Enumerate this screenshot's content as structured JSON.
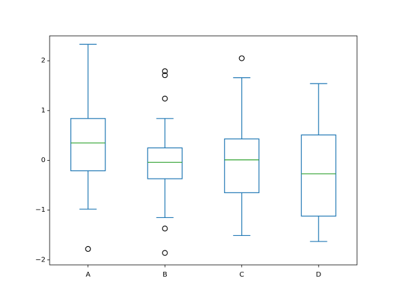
{
  "chart_data": {
    "type": "boxplot",
    "title": "",
    "xlabel": "",
    "ylabel": "",
    "ylim": [
      -2.1,
      2.5
    ],
    "yticks": [
      -2,
      -1,
      0,
      1,
      2
    ],
    "ytick_labels": [
      "−2",
      "−1",
      "0",
      "1",
      "2"
    ],
    "grid": false,
    "legend": "none",
    "colors": {
      "box": "#1f77b4",
      "median": "#2ca02c",
      "flier": "#000000",
      "axes": "#000000"
    },
    "categories": [
      "A",
      "B",
      "C",
      "D"
    ],
    "boxes": [
      {
        "label": "A",
        "whisker_low": -0.98,
        "q1": -0.21,
        "median": 0.35,
        "q3": 0.84,
        "whisker_high": 2.33,
        "fliers": [
          -1.78
        ]
      },
      {
        "label": "B",
        "whisker_low": -1.15,
        "q1": -0.37,
        "median": -0.04,
        "q3": 0.25,
        "whisker_high": 0.84,
        "fliers": [
          1.79,
          1.71,
          1.24,
          -1.37,
          -1.86
        ]
      },
      {
        "label": "C",
        "whisker_low": -1.51,
        "q1": -0.65,
        "median": 0.01,
        "q3": 0.43,
        "whisker_high": 1.66,
        "fliers": [
          2.05
        ]
      },
      {
        "label": "D",
        "whisker_low": -1.63,
        "q1": -1.12,
        "median": -0.27,
        "q3": 0.51,
        "whisker_high": 1.54,
        "fliers": []
      }
    ]
  }
}
